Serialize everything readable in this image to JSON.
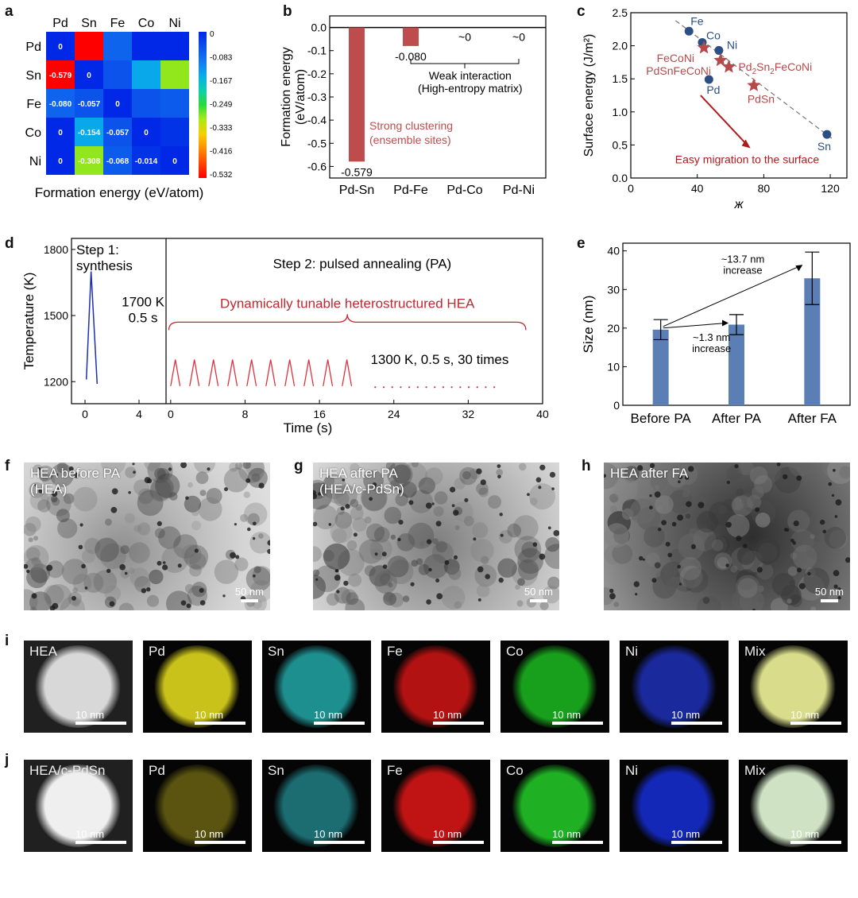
{
  "panel_labels": {
    "a": "a",
    "b": "b",
    "c": "c",
    "d": "d",
    "e": "e",
    "f": "f",
    "g": "g",
    "h": "h",
    "i": "i",
    "j": "j"
  },
  "chart_data": [
    {
      "panel": "a",
      "type": "heatmap",
      "columns": [
        "Pd",
        "Sn",
        "Fe",
        "Co",
        "Ni"
      ],
      "rows": [
        "Pd",
        "Sn",
        "Fe",
        "Co",
        "Ni"
      ],
      "values": [
        [
          0,
          null,
          null,
          null,
          null
        ],
        [
          -0.579,
          0,
          null,
          null,
          null
        ],
        [
          -0.08,
          -0.057,
          0,
          null,
          null
        ],
        [
          0,
          -0.154,
          -0.057,
          0,
          null
        ],
        [
          0,
          -0.308,
          -0.068,
          -0.014,
          0
        ]
      ],
      "upper_values": [
        [
          null,
          -0.579,
          -0.08,
          0,
          0
        ],
        [
          null,
          null,
          -0.057,
          -0.154,
          -0.308
        ],
        [
          null,
          null,
          null,
          -0.057,
          -0.068
        ],
        [
          null,
          null,
          null,
          null,
          -0.014
        ],
        [
          null,
          null,
          null,
          null,
          null
        ]
      ],
      "cell_labels": [
        [
          "0",
          "",
          "",
          "",
          ""
        ],
        [
          "-0.579",
          "0",
          "",
          "",
          ""
        ],
        [
          "-0.080",
          "-0.057",
          "0",
          "",
          ""
        ],
        [
          "0",
          "-0.154",
          "-0.057",
          "0",
          ""
        ],
        [
          "0",
          "-0.308",
          "-0.068",
          "-0.014",
          "0"
        ]
      ],
      "colorbar_ticks": [
        "0",
        "-0.083",
        "-0.167",
        "-0.249",
        "-0.333",
        "-0.416",
        "-0.532"
      ],
      "vmin": -0.532,
      "vmax": 0,
      "xlabel": "Formation energy (eV/atom)"
    },
    {
      "panel": "b",
      "type": "bar",
      "categories": [
        "Pd-Sn",
        "Pd-Fe",
        "Pd-Co",
        "Pd-Ni"
      ],
      "values": [
        -0.579,
        -0.08,
        0,
        0
      ],
      "value_labels": [
        "-0.579",
        "-0.080",
        "~0",
        "~0"
      ],
      "ylabel": "Formation energy (eV/atom)",
      "ylim": [
        -0.65,
        0.05
      ],
      "yticks": [
        "0.0",
        "-0.1",
        "-0.2",
        "-0.3",
        "-0.4",
        "-0.5",
        "-0.6"
      ],
      "annotations": [
        "Strong clustering",
        "(ensemble sites)",
        "Weak interaction",
        "(High-entropy matrix)"
      ]
    },
    {
      "panel": "c",
      "type": "scatter",
      "xlabel": "ж",
      "ylabel": "Surface energy (J/m²)",
      "xlim": [
        0,
        130
      ],
      "ylim": [
        0,
        2.5
      ],
      "xticks": [
        "0",
        "40",
        "80",
        "120"
      ],
      "yticks": [
        "0.0",
        "0.5",
        "1.0",
        "1.5",
        "2.0",
        "2.5"
      ],
      "elements": [
        {
          "name": "Fe",
          "x": 35,
          "y": 2.22
        },
        {
          "name": "Co",
          "x": 43,
          "y": 2.05
        },
        {
          "name": "Ni",
          "x": 53,
          "y": 1.93
        },
        {
          "name": "Pd",
          "x": 47,
          "y": 1.49
        },
        {
          "name": "Sn",
          "x": 118,
          "y": 0.66
        }
      ],
      "alloys": [
        {
          "name": "FeCoNi",
          "x": 44,
          "y": 1.97
        },
        {
          "name": "PdSnFeCoNi",
          "x": 54,
          "y": 1.78
        },
        {
          "name": "Pd2Sn2FeCoNi",
          "x": 59,
          "y": 1.68
        },
        {
          "name": "PdSn",
          "x": 74,
          "y": 1.4
        }
      ],
      "alloy_labels": [
        "FeCoNi",
        "PdSnFeCoNi",
        "Pd",
        "2",
        "Sn",
        "2",
        "FeCoNi",
        "PdSn"
      ],
      "annotation": "Easy migration to the surface"
    },
    {
      "panel": "d",
      "type": "line",
      "xlabel": "Time (s)",
      "ylabel": "Temperature (K)",
      "ylim": [
        1100,
        1850
      ],
      "yticks": [
        "1200",
        "1500",
        "1800"
      ],
      "xticks_left": [
        "0",
        "4"
      ],
      "xticks_right": [
        "0",
        "8",
        "16",
        "24",
        "32",
        "40"
      ],
      "step1": [
        "Step 1:",
        "synthesis"
      ],
      "step1_conditions": [
        "1700 K",
        "0.5 s"
      ],
      "step2": "Step 2: pulsed annealing (PA)",
      "brace_label": "Dynamically tunable heterostructured HEA",
      "pulse_label": "1300 K, 0.5 s, 30 times",
      "synthesis_peak_K": 1700,
      "pulse_peak_K": 1300,
      "pulse_count_shown": 10
    },
    {
      "panel": "e",
      "type": "bar",
      "categories": [
        "Before PA",
        "After PA",
        "After FA"
      ],
      "values": [
        19.6,
        20.9,
        32.9
      ],
      "errors": [
        2.6,
        2.6,
        6.8
      ],
      "ylabel": "Size (nm)",
      "ylim": [
        0,
        42
      ],
      "yticks": [
        "0",
        "10",
        "20",
        "30",
        "40"
      ],
      "annotations": [
        [
          "~1.3 nm",
          "increase"
        ],
        [
          "~13.7 nm",
          "increase"
        ]
      ]
    }
  ],
  "tem": [
    {
      "label1": "HEA before PA",
      "label2": "(HEA)",
      "scale": "50 nm"
    },
    {
      "label1": "HEA after PA",
      "label2": "(HEA/c-PdSn)",
      "scale": "50 nm"
    },
    {
      "label1": "HEA after FA",
      "label2": "",
      "scale": "50 nm"
    }
  ],
  "maps_i": [
    {
      "label": "HEA",
      "scale": "10 nm",
      "color": "#d8d8d8"
    },
    {
      "label": "Pd",
      "scale": "10 nm",
      "color": "#c9c21a"
    },
    {
      "label": "Sn",
      "scale": "10 nm",
      "color": "#1e8f8f"
    },
    {
      "label": "Fe",
      "scale": "10 nm",
      "color": "#b21212"
    },
    {
      "label": "Co",
      "scale": "10 nm",
      "color": "#18a01c"
    },
    {
      "label": "Ni",
      "scale": "10 nm",
      "color": "#1a2a9c"
    },
    {
      "label": "Mix",
      "scale": "10 nm",
      "color": "#d9dc8a"
    }
  ],
  "maps_j": [
    {
      "label": "HEA/c-PdSn",
      "scale": "10 nm",
      "color": "#efefef"
    },
    {
      "label": "Pd",
      "scale": "10 nm",
      "color": "#5a5410"
    },
    {
      "label": "Sn",
      "scale": "10 nm",
      "color": "#1c6d72"
    },
    {
      "label": "Fe",
      "scale": "10 nm",
      "color": "#c01414"
    },
    {
      "label": "Co",
      "scale": "10 nm",
      "color": "#1fb024"
    },
    {
      "label": "Ni",
      "scale": "10 nm",
      "color": "#1428b8"
    },
    {
      "label": "Mix",
      "scale": "10 nm",
      "color": "#cfe3c4"
    }
  ]
}
